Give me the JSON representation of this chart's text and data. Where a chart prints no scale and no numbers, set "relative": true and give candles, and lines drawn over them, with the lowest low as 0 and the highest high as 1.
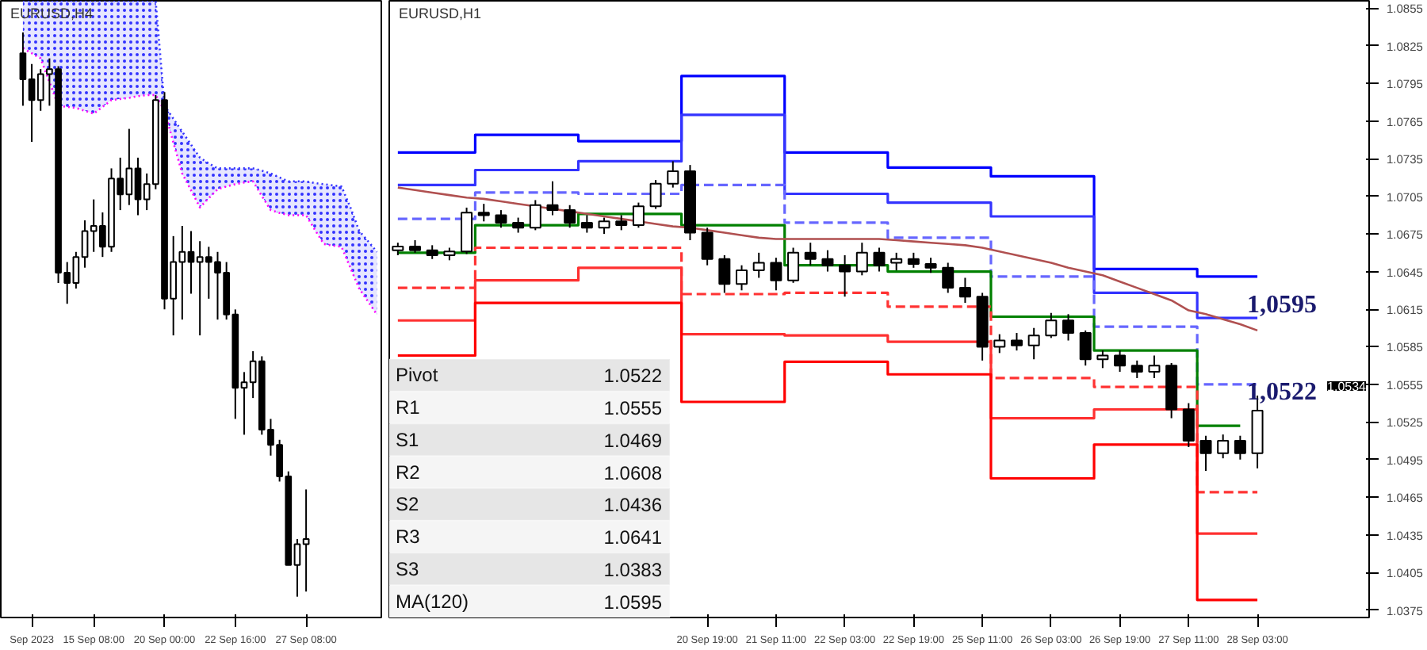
{
  "chart_data": [
    {
      "type": "candlestick",
      "title": "EURUSD,H4",
      "relative": true,
      "tick_labels": "x",
      "categories": [
        null,
        "Sep 2023",
        null,
        null,
        null,
        null,
        null,
        null,
        "15 Sep 08:00",
        null,
        null,
        null,
        null,
        null,
        null,
        null,
        "20 Sep 00:00",
        null,
        null,
        null,
        null,
        null,
        null,
        null,
        "22 Sep 16:00",
        null,
        null,
        null,
        null,
        null,
        null,
        null,
        "27 Sep 08:00",
        null,
        null,
        null,
        null,
        null,
        null,
        null,
        null
      ],
      "series": [
        {
          "type": "line",
          "color": "#3333ff",
          "line_style": "dotted",
          "upper": [
            1.056,
            1.056,
            1.056,
            1.056,
            1.056,
            1.056,
            1.056,
            1.056,
            1.056,
            1.056,
            1.056,
            1.056,
            1.056,
            1.056,
            1.056,
            1.056,
            0.87,
            0.847,
            0.824,
            0.801,
            0.778,
            0.768,
            0.759,
            0.759,
            0.759,
            0.759,
            0.759,
            0.755,
            0.75,
            0.743,
            0.736,
            0.736,
            0.736,
            0.733,
            0.731,
            0.729,
            0.727,
            0.69,
            0.648,
            0.63,
            0.611
          ],
          "values": [
            1.056,
            1.056,
            1.056,
            1.056,
            1.056,
            1.056,
            1.056,
            1.056,
            1.056,
            1.056,
            1.056,
            1.056,
            1.056,
            1.056,
            1.056,
            1.056,
            0.87,
            0.847,
            0.824,
            0.801,
            0.778,
            0.768,
            0.759,
            0.759,
            0.759,
            0.759,
            0.759,
            0.755,
            0.75,
            0.743,
            0.736,
            0.736,
            0.736,
            0.733,
            0.731,
            0.729,
            0.727,
            0.69,
            0.648,
            0.63,
            0.611
          ],
          "lower": [
            0.972,
            0.963,
            0.954,
            0.912,
            0.87,
            0.868,
            0.866,
            0.861,
            0.856,
            0.868,
            0.88,
            0.882,
            0.884,
            0.887,
            0.889,
            0.889,
            0.861,
            0.805,
            0.75,
            0.72,
            0.69,
            0.706,
            0.722,
            0.727,
            0.731,
            0.734,
            0.736,
            0.71,
            0.685,
            0.68,
            0.676,
            0.676,
            0.676,
            0.65,
            0.625,
            0.622,
            0.62,
            0.583,
            0.546,
            0.523,
            0.5
          ]
        },
        {
          "type": "line",
          "color": "#ff00ff",
          "line_style": "dotted",
          "values": [
            0.972,
            0.963,
            0.954,
            0.912,
            0.87,
            0.868,
            0.866,
            0.861,
            0.856,
            0.868,
            0.88,
            0.882,
            0.884,
            0.887,
            0.889,
            0.889,
            0.861,
            0.805,
            0.75,
            0.72,
            0.69,
            0.706,
            0.722,
            0.727,
            0.731,
            0.734,
            0.736,
            0.71,
            0.685,
            0.68,
            0.676,
            0.676,
            0.676,
            0.65,
            0.625,
            0.622,
            0.62,
            0.583,
            0.546,
            0.523,
            0.5
          ]
        },
        {
          "type": "candlestick",
          "color": "#000000",
          "ohlc": [
            [
              0.963,
              1.0,
              0.87,
              0.917
            ],
            [
              0.917,
              0.944,
              0.806,
              0.88
            ],
            [
              0.88,
              0.935,
              0.861,
              0.926
            ],
            [
              0.926,
              0.954,
              0.87,
              0.935
            ],
            [
              0.935,
              0.94,
              0.556,
              0.574
            ],
            [
              0.574,
              0.593,
              0.519,
              0.556
            ],
            [
              0.556,
              0.611,
              0.546,
              0.602
            ],
            [
              0.602,
              0.667,
              0.583,
              0.648
            ],
            [
              0.648,
              0.704,
              0.611,
              0.657
            ],
            [
              0.657,
              0.681,
              0.602,
              0.62
            ],
            [
              0.62,
              0.759,
              0.611,
              0.741
            ],
            [
              0.741,
              0.778,
              0.685,
              0.713
            ],
            [
              0.713,
              0.829,
              0.694,
              0.759
            ],
            [
              0.759,
              0.778,
              0.676,
              0.704
            ],
            [
              0.704,
              0.75,
              0.685,
              0.731
            ],
            [
              0.731,
              0.889,
              0.722,
              0.88
            ],
            [
              0.88,
              0.894,
              0.509,
              0.528
            ],
            [
              0.528,
              0.639,
              0.463,
              0.593
            ],
            [
              0.593,
              0.657,
              0.491,
              0.611
            ],
            [
              0.611,
              0.648,
              0.537,
              0.593
            ],
            [
              0.593,
              0.63,
              0.463,
              0.602
            ],
            [
              0.602,
              0.62,
              0.528,
              0.593
            ],
            [
              0.593,
              0.611,
              0.491,
              0.574
            ],
            [
              0.574,
              0.593,
              0.491,
              0.5
            ],
            [
              0.5,
              0.509,
              0.315,
              0.37
            ],
            [
              0.37,
              0.398,
              0.287,
              0.38
            ],
            [
              0.38,
              0.435,
              0.352,
              0.417
            ],
            [
              0.417,
              0.426,
              0.287,
              0.296
            ],
            [
              0.296,
              0.315,
              0.25,
              0.269
            ],
            [
              0.269,
              0.278,
              0.204,
              0.213
            ],
            [
              0.213,
              0.222,
              0.056,
              0.056
            ],
            [
              0.056,
              0.102,
              0.0,
              0.093
            ],
            [
              0.093,
              0.19,
              0.009,
              0.102
            ],
            null,
            null,
            null,
            null,
            null,
            null,
            null,
            null
          ]
        }
      ]
    },
    {
      "type": "candlestick",
      "title": "EURUSD,H1",
      "ylim": [
        1.0369,
        1.0861
      ],
      "categories": [
        null,
        null,
        null,
        null,
        null,
        null,
        null,
        null,
        null,
        null,
        null,
        null,
        null,
        null,
        null,
        null,
        null,
        null,
        "20 Sep 19:00",
        null,
        null,
        null,
        "21 Sep 11:00",
        null,
        null,
        null,
        "22 Sep 03:00",
        null,
        null,
        null,
        "22 Sep 19:00",
        null,
        null,
        null,
        "25 Sep 11:00",
        null,
        null,
        null,
        "26 Sep 03:00",
        null,
        null,
        null,
        "26 Sep 19:00",
        null,
        null,
        null,
        "27 Sep 11:00",
        null,
        null,
        null,
        "28 Sep 03:00",
        null,
        null,
        null,
        null,
        null,
        null
      ],
      "yticks": [
        1.0375,
        1.0405,
        1.0435,
        1.0465,
        1.0495,
        1.0525,
        1.0555,
        1.0585,
        1.0615,
        1.0645,
        1.0675,
        1.0705,
        1.0735,
        1.0765,
        1.0795,
        1.0825,
        1.0855
      ],
      "annotations": [
        "Pivot",
        "1.0522",
        "R1",
        "1.0555",
        "S1",
        "1.0469",
        "R2",
        "1.0608",
        "S2",
        "1.0436",
        "R3",
        "1.0641",
        "S3",
        "1.0383",
        "MA(120)",
        "1.0595",
        "1,0595",
        "1,0522",
        "1.0534"
      ],
      "series": [
        {
          "type": "step",
          "color": "#0000ff",
          "values": [
            1.074,
            1.074,
            1.074,
            1.074,
            1.074,
            1.0754,
            1.0754,
            1.0754,
            1.0754,
            1.0754,
            1.0754,
            1.0749,
            1.0749,
            1.0749,
            1.0749,
            1.0749,
            1.0749,
            1.0801,
            1.0801,
            1.0801,
            1.0801,
            1.0801,
            1.0801,
            1.074,
            1.074,
            1.074,
            1.074,
            1.074,
            1.074,
            1.0728,
            1.0728,
            1.0728,
            1.0728,
            1.0728,
            1.0728,
            1.0721,
            1.0721,
            1.0721,
            1.0721,
            1.0721,
            1.0721,
            1.0647,
            1.0647,
            1.0647,
            1.0647,
            1.0647,
            1.0647,
            1.0641,
            1.0641,
            1.0641,
            1.0641,
            null,
            null,
            null,
            null,
            null,
            null
          ]
        },
        {
          "type": "step",
          "color": "#3333ff",
          "values": [
            1.0714,
            1.0714,
            1.0714,
            1.0714,
            1.0714,
            1.0726,
            1.0726,
            1.0726,
            1.0726,
            1.0726,
            1.0726,
            1.0733,
            1.0733,
            1.0733,
            1.0733,
            1.0733,
            1.0733,
            1.077,
            1.077,
            1.077,
            1.077,
            1.077,
            1.077,
            1.0707,
            1.0707,
            1.0707,
            1.0707,
            1.0707,
            1.0707,
            1.07,
            1.07,
            1.07,
            1.07,
            1.07,
            1.07,
            1.0689,
            1.0689,
            1.0689,
            1.0689,
            1.0689,
            1.0689,
            1.0628,
            1.0628,
            1.0628,
            1.0628,
            1.0628,
            1.0628,
            1.0608,
            1.0608,
            1.0608,
            1.0608,
            null,
            null,
            null,
            null,
            null,
            null
          ]
        },
        {
          "type": "step",
          "color": "#6666ff",
          "line_style": "dashed",
          "values": [
            1.0687,
            1.0687,
            1.0687,
            1.0687,
            1.0687,
            1.0708,
            1.0708,
            1.0708,
            1.0708,
            1.0708,
            1.0708,
            1.0707,
            1.0707,
            1.0707,
            1.0707,
            1.0707,
            1.0707,
            1.0714,
            1.0714,
            1.0714,
            1.0714,
            1.0714,
            1.0714,
            1.0684,
            1.0684,
            1.0684,
            1.0684,
            1.0684,
            1.0684,
            1.0672,
            1.0672,
            1.0672,
            1.0672,
            1.0672,
            1.0672,
            1.0641,
            1.0641,
            1.0641,
            1.0641,
            1.0641,
            1.0641,
            1.0601,
            1.0601,
            1.0601,
            1.0601,
            1.0601,
            1.0601,
            1.0555,
            1.0555,
            1.0555,
            1.0555,
            null,
            null,
            null,
            null,
            null,
            null
          ]
        },
        {
          "type": "step",
          "color": "#008000",
          "values": [
            1.066,
            1.066,
            1.066,
            1.066,
            1.066,
            1.0682,
            1.0682,
            1.0682,
            1.0682,
            1.0682,
            1.0682,
            1.0691,
            1.0691,
            1.0691,
            1.0691,
            1.0691,
            1.0691,
            1.0682,
            1.0682,
            1.0682,
            1.0682,
            1.0682,
            1.0682,
            1.065,
            1.065,
            1.065,
            1.065,
            1.065,
            1.065,
            1.0645,
            1.0645,
            1.0645,
            1.0645,
            1.0645,
            1.0645,
            1.0609,
            1.0609,
            1.0609,
            1.0609,
            1.0609,
            1.0609,
            1.0582,
            1.0582,
            1.0582,
            1.0582,
            1.0582,
            1.0582,
            1.0522,
            1.0522,
            1.0522,
            null,
            null,
            null,
            null,
            null,
            null,
            null
          ]
        },
        {
          "type": "step",
          "color": "#ff3333",
          "line_style": "dashed",
          "values": [
            1.0632,
            1.0632,
            1.0632,
            1.0632,
            1.0632,
            1.0664,
            1.0664,
            1.0664,
            1.0664,
            1.0664,
            1.0664,
            1.0664,
            1.0664,
            1.0664,
            1.0664,
            1.0664,
            1.0664,
            1.0627,
            1.0627,
            1.0627,
            1.0627,
            1.0627,
            1.0627,
            1.0628,
            1.0628,
            1.0628,
            1.0628,
            1.0628,
            1.0628,
            1.0617,
            1.0617,
            1.0617,
            1.0617,
            1.0617,
            1.0617,
            1.056,
            1.056,
            1.056,
            1.056,
            1.056,
            1.056,
            1.0553,
            1.0553,
            1.0553,
            1.0553,
            1.0553,
            1.0553,
            1.0469,
            1.0469,
            1.0469,
            1.0469,
            null,
            null,
            null,
            null,
            null,
            null
          ]
        },
        {
          "type": "step",
          "color": "#ff3030",
          "values": [
            1.0606,
            1.0606,
            1.0606,
            1.0606,
            1.0606,
            1.0638,
            1.0638,
            1.0638,
            1.0638,
            1.0638,
            1.0638,
            1.0648,
            1.0648,
            1.0648,
            1.0648,
            1.0648,
            1.0648,
            1.0595,
            1.0595,
            1.0595,
            1.0595,
            1.0595,
            1.0595,
            1.0594,
            1.0594,
            1.0594,
            1.0594,
            1.0594,
            1.0594,
            1.0589,
            1.0589,
            1.0589,
            1.0589,
            1.0589,
            1.0589,
            1.0528,
            1.0528,
            1.0528,
            1.0528,
            1.0528,
            1.0528,
            1.0535,
            1.0535,
            1.0535,
            1.0535,
            1.0535,
            1.0535,
            1.0436,
            1.0436,
            1.0436,
            1.0436,
            null,
            null,
            null,
            null,
            null,
            null
          ]
        },
        {
          "type": "step",
          "color": "#ff0000",
          "values": [
            1.0578,
            1.0578,
            1.0578,
            1.0578,
            1.0578,
            1.062,
            1.062,
            1.062,
            1.062,
            1.062,
            1.062,
            1.062,
            1.062,
            1.062,
            1.062,
            1.062,
            1.062,
            1.0541,
            1.0541,
            1.0541,
            1.0541,
            1.0541,
            1.0541,
            1.0573,
            1.0573,
            1.0573,
            1.0573,
            1.0573,
            1.0573,
            1.0563,
            1.0563,
            1.0563,
            1.0563,
            1.0563,
            1.0563,
            1.048,
            1.048,
            1.048,
            1.048,
            1.048,
            1.048,
            1.0507,
            1.0507,
            1.0507,
            1.0507,
            1.0507,
            1.0507,
            1.0383,
            1.0383,
            1.0383,
            1.0383,
            null,
            null,
            null,
            null,
            null,
            null
          ]
        },
        {
          "type": "line",
          "color": "#b05050",
          "values": [
            1.0712,
            1.071,
            1.0708,
            1.0706,
            1.0704,
            1.0703,
            1.0701,
            1.0699,
            1.0697,
            1.0695,
            1.0693,
            1.0691,
            1.0689,
            1.0687,
            1.0685,
            1.0683,
            1.0681,
            1.068,
            1.0678,
            1.0676,
            1.0674,
            1.0672,
            1.0671,
            1.0671,
            1.0671,
            1.0671,
            1.0671,
            1.0671,
            1.0671,
            1.067,
            1.0669,
            1.0668,
            1.0667,
            1.0666,
            1.0664,
            1.0661,
            1.0658,
            1.0655,
            1.0652,
            1.0648,
            1.0645,
            1.0642,
            1.0637,
            1.0632,
            1.0627,
            1.0622,
            1.0614,
            1.0611,
            1.0607,
            1.0603,
            1.0598,
            null,
            null,
            null,
            null,
            null,
            null
          ]
        },
        {
          "type": "candlestick",
          "color": "#000000",
          "ohlc": [
            [
              1.0662,
              1.0668,
              1.0658,
              1.0665
            ],
            [
              1.0665,
              1.067,
              1.066,
              1.0662
            ],
            [
              1.0662,
              1.0666,
              1.0655,
              1.0658
            ],
            [
              1.0658,
              1.0664,
              1.0654,
              1.0661
            ],
            [
              1.0661,
              1.0696,
              1.0659,
              1.0692
            ],
            [
              1.0692,
              1.0699,
              1.0685,
              1.069
            ],
            [
              1.069,
              1.0694,
              1.068,
              1.0684
            ],
            [
              1.0684,
              1.0688,
              1.0676,
              1.068
            ],
            [
              1.068,
              1.0702,
              1.0678,
              1.0698
            ],
            [
              1.0698,
              1.0717,
              1.069,
              1.0694
            ],
            [
              1.0694,
              1.0698,
              1.068,
              1.0684
            ],
            [
              1.0684,
              1.069,
              1.0676,
              1.068
            ],
            [
              1.068,
              1.0688,
              1.0675,
              1.0685
            ],
            [
              1.0685,
              1.069,
              1.0678,
              1.0682
            ],
            [
              1.0682,
              1.07,
              1.068,
              1.0697
            ],
            [
              1.0697,
              1.0718,
              1.0695,
              1.0715
            ],
            [
              1.0715,
              1.0733,
              1.0712,
              1.0725
            ],
            [
              1.0725,
              1.073,
              1.067,
              1.0676
            ],
            [
              1.0676,
              1.068,
              1.065,
              1.0655
            ],
            [
              1.0655,
              1.0658,
              1.0628,
              1.0635
            ],
            [
              1.0635,
              1.065,
              1.063,
              1.0646
            ],
            [
              1.0646,
              1.066,
              1.064,
              1.0652
            ],
            [
              1.0652,
              1.0656,
              1.063,
              1.0638
            ],
            [
              1.0638,
              1.0664,
              1.0636,
              1.066
            ],
            [
              1.066,
              1.0668,
              1.065,
              1.0655
            ],
            [
              1.0655,
              1.0662,
              1.0645,
              1.065
            ],
            [
              1.065,
              1.0658,
              1.0625,
              1.0645
            ],
            [
              1.0645,
              1.0668,
              1.0642,
              1.066
            ],
            [
              1.066,
              1.0664,
              1.0645,
              1.065
            ],
            [
              1.0652,
              1.066,
              1.0646,
              1.0655
            ],
            [
              1.0655,
              1.066,
              1.0648,
              1.0651
            ],
            [
              1.0651,
              1.0656,
              1.0644,
              1.0648
            ],
            [
              1.0648,
              1.0652,
              1.0628,
              1.0632
            ],
            [
              1.0632,
              1.064,
              1.062,
              1.0625
            ],
            [
              1.0625,
              1.0628,
              1.0574,
              1.0585
            ],
            [
              1.0585,
              1.0595,
              1.058,
              1.059
            ],
            [
              1.059,
              1.0596,
              1.0582,
              1.0586
            ],
            [
              1.0586,
              1.06,
              1.0575,
              1.0594
            ],
            [
              1.0594,
              1.0612,
              1.0592,
              1.0606
            ],
            [
              1.0606,
              1.0611,
              1.059,
              1.0596
            ],
            [
              1.0596,
              1.0598,
              1.057,
              1.0575
            ],
            [
              1.0575,
              1.0582,
              1.0568,
              1.0578
            ],
            [
              1.0578,
              1.0582,
              1.0565,
              1.057
            ],
            [
              1.057,
              1.0574,
              1.056,
              1.0565
            ],
            [
              1.0565,
              1.0578,
              1.056,
              1.057
            ],
            [
              1.057,
              1.0572,
              1.0528,
              1.0535
            ],
            [
              1.0535,
              1.054,
              1.0505,
              1.051
            ],
            [
              1.051,
              1.0514,
              1.0486,
              1.05
            ],
            [
              1.05,
              1.0515,
              1.0496,
              1.051
            ],
            [
              1.051,
              1.0514,
              1.0495,
              1.05
            ],
            [
              1.05,
              1.0546,
              1.0488,
              1.0534
            ],
            null,
            null,
            null,
            null,
            null,
            null
          ]
        }
      ]
    }
  ]
}
